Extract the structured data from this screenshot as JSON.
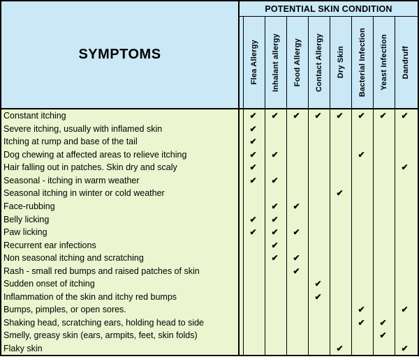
{
  "chart_data": {
    "type": "table",
    "title": "POTENTIAL SKIN CONDITION",
    "row_header": "SYMPTOMS",
    "columns": [
      "Flea Allergy",
      "Inhalant allergy",
      "Food Allergy",
      "Contact Allergy",
      "Dry Skin",
      "Bacterial Infection",
      "Yeast Infection",
      "Dandruff"
    ],
    "rows": [
      {
        "symptom": "Constant itching",
        "checks": [
          1,
          1,
          1,
          1,
          1,
          1,
          1,
          1
        ]
      },
      {
        "symptom": "Severe itching, usually with inflamed skin",
        "checks": [
          1,
          0,
          0,
          0,
          0,
          0,
          0,
          0
        ]
      },
      {
        "symptom": "Itching at rump and base of the tail",
        "checks": [
          1,
          0,
          0,
          0,
          0,
          0,
          0,
          0
        ]
      },
      {
        "symptom": "Dog chewing at affected areas to relieve itching",
        "checks": [
          1,
          1,
          0,
          0,
          0,
          1,
          0,
          0
        ]
      },
      {
        "symptom": "Hair falling out in patches. Skin dry and scaly",
        "checks": [
          1,
          0,
          0,
          0,
          0,
          0,
          0,
          1
        ]
      },
      {
        "symptom": "Seasonal - itching in warm weather",
        "checks": [
          1,
          1,
          0,
          0,
          0,
          0,
          0,
          0
        ]
      },
      {
        "symptom": "Seasonal itching in winter or cold weather",
        "checks": [
          0,
          0,
          0,
          0,
          1,
          0,
          0,
          0
        ]
      },
      {
        "symptom": "Face-rubbing",
        "checks": [
          0,
          1,
          1,
          0,
          0,
          0,
          0,
          0
        ]
      },
      {
        "symptom": "Belly licking",
        "checks": [
          1,
          1,
          0,
          0,
          0,
          0,
          0,
          0
        ]
      },
      {
        "symptom": "Paw licking",
        "checks": [
          1,
          1,
          1,
          0,
          0,
          0,
          0,
          0
        ]
      },
      {
        "symptom": "Recurrent ear infections",
        "checks": [
          0,
          1,
          0,
          0,
          0,
          0,
          0,
          0
        ]
      },
      {
        "symptom": "Non seasonal itching and scratching",
        "checks": [
          0,
          1,
          1,
          0,
          0,
          0,
          0,
          0
        ]
      },
      {
        "symptom": "Rash - small red bumps and raised patches of skin",
        "checks": [
          0,
          0,
          1,
          0,
          0,
          0,
          0,
          0
        ]
      },
      {
        "symptom": "Sudden onset of itching",
        "checks": [
          0,
          0,
          0,
          1,
          0,
          0,
          0,
          0
        ]
      },
      {
        "symptom": "Inflammation of the skin and itchy red bumps",
        "checks": [
          0,
          0,
          0,
          1,
          0,
          0,
          0,
          0
        ]
      },
      {
        "symptom": "Bumps, pimples, or open sores.",
        "checks": [
          0,
          0,
          0,
          0,
          0,
          1,
          0,
          1
        ]
      },
      {
        "symptom": "Shaking head, scratching ears, holding head to side",
        "checks": [
          0,
          0,
          0,
          0,
          0,
          1,
          1,
          0
        ]
      },
      {
        "symptom": "Smelly, greasy skin (ears, armpits, feet, skin folds)",
        "checks": [
          0,
          0,
          0,
          0,
          0,
          0,
          1,
          0
        ]
      },
      {
        "symptom": "Flaky skin",
        "checks": [
          0,
          0,
          0,
          0,
          1,
          0,
          0,
          1
        ]
      }
    ]
  },
  "ui": {
    "check_glyph": "✔",
    "colors": {
      "header_bg": "#CAE8F6",
      "body_bg": "#EBF5D0",
      "border": "#000000",
      "text": "#000000"
    }
  }
}
